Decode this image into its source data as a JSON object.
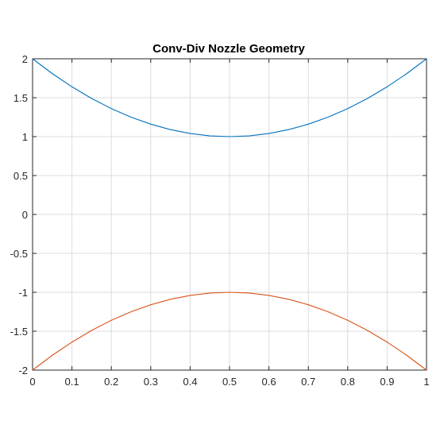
{
  "chart_data": {
    "type": "line",
    "title": "Conv-Div Nozzle Geometry",
    "xlabel": "",
    "ylabel": "",
    "xlim": [
      0,
      1
    ],
    "ylim": [
      -2,
      2
    ],
    "grid": true,
    "x_ticks": [
      "0",
      "0.1",
      "0.2",
      "0.3",
      "0.4",
      "0.5",
      "0.6",
      "0.7",
      "0.8",
      "0.9",
      "1"
    ],
    "y_ticks": [
      "2",
      "1.5",
      "1",
      "0.5",
      "0",
      "-0.5",
      "-1",
      "-1.5",
      "-2"
    ],
    "x": [
      0,
      0.05,
      0.1,
      0.15,
      0.2,
      0.25,
      0.3,
      0.35,
      0.4,
      0.45,
      0.5,
      0.55,
      0.6,
      0.65,
      0.7,
      0.75,
      0.8,
      0.85,
      0.9,
      0.95,
      1
    ],
    "series": [
      {
        "color": "#0072BD",
        "values": [
          2,
          1.81,
          1.64,
          1.49,
          1.36,
          1.25,
          1.16,
          1.09,
          1.04,
          1.01,
          1,
          1.01,
          1.04,
          1.09,
          1.16,
          1.25,
          1.36,
          1.49,
          1.64,
          1.81,
          2
        ]
      },
      {
        "color": "#D95319",
        "values": [
          -2,
          -1.81,
          -1.64,
          -1.49,
          -1.36,
          -1.25,
          -1.16,
          -1.09,
          -1.04,
          -1.01,
          -1,
          -1.01,
          -1.04,
          -1.09,
          -1.16,
          -1.25,
          -1.36,
          -1.49,
          -1.64,
          -1.81,
          -2
        ]
      }
    ]
  }
}
